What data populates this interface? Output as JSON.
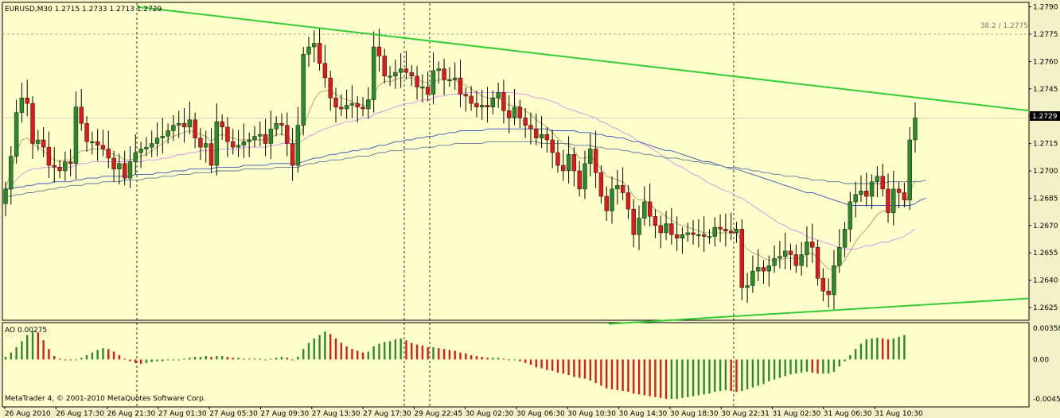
{
  "header": {
    "title": "EURUSD,M30  1.2715 1.2733 1.2713 1.2729",
    "fib_label": "38.2 / 1.2775",
    "indicator_label": "AO 0.00275",
    "copyright": "MetaTrader 4, © 2001-2010 MetaQuotes Software Corp."
  },
  "colors": {
    "background": "#FFFFCC",
    "bull": "#2A8A2A",
    "bear": "#DD1A1A",
    "trendline": "#33CC33",
    "grid": "#C0C0B0",
    "price_box": "#000000"
  },
  "chart_data": [
    {
      "type": "candlestick",
      "symbol": "EURUSD",
      "timeframe": "M30",
      "ylim": [
        1.2618,
        1.2792
      ],
      "price_ticks": [
        "1.2790",
        "1.2775",
        "1.2760",
        "1.2745",
        "1.2730",
        "1.2715",
        "1.2700",
        "1.2685",
        "1.2670",
        "1.2655",
        "1.2640",
        "1.2625"
      ],
      "current_price": "1.2729",
      "fib_level": 1.2775,
      "x_labels": [
        "26 Aug 2010",
        "26 Aug 17:30",
        "26 Aug 21:30",
        "27 Aug 01:30",
        "27 Aug 05:30",
        "27 Aug 09:30",
        "27 Aug 13:30",
        "27 Aug 17:30",
        "29 Aug 22:45",
        "30 Aug 02:30",
        "30 Aug 06:30",
        "30 Aug 10:30",
        "30 Aug 14:30",
        "30 Aug 18:30",
        "30 Aug 22:31",
        "31 Aug 02:30",
        "31 Aug 06:30",
        "31 Aug 10:30"
      ],
      "candles_close": [
        1.269,
        1.2708,
        1.2732,
        1.274,
        1.2737,
        1.2715,
        1.2717,
        1.2713,
        1.2703,
        1.2702,
        1.27,
        1.2705,
        1.2704,
        1.2735,
        1.2726,
        1.2716,
        1.2716,
        1.2714,
        1.2712,
        1.2707,
        1.2701,
        1.2704,
        1.2696,
        1.2705,
        1.271,
        1.2712,
        1.2713,
        1.2715,
        1.2718,
        1.2719,
        1.2722,
        1.2725,
        1.2726,
        1.2724,
        1.2728,
        1.2718,
        1.2713,
        1.2715,
        1.2703,
        1.2727,
        1.2724,
        1.2716,
        1.2713,
        1.2714,
        1.2716,
        1.2717,
        1.2719,
        1.272,
        1.2715,
        1.2723,
        1.2726,
        1.2725,
        1.2715,
        1.2703,
        1.2725,
        1.2764,
        1.2768,
        1.277,
        1.2759,
        1.2751,
        1.274,
        1.2735,
        1.2734,
        1.2736,
        1.2737,
        1.2735,
        1.2734,
        1.2739,
        1.2768,
        1.2763,
        1.2752,
        1.2752,
        1.2754,
        1.2756,
        1.2754,
        1.2752,
        1.2746,
        1.2746,
        1.2742,
        1.2755,
        1.2756,
        1.275,
        1.275,
        1.2751,
        1.2742,
        1.2741,
        1.2737,
        1.2735,
        1.2736,
        1.2735,
        1.274,
        1.2743,
        1.2733,
        1.2729,
        1.2735,
        1.2729,
        1.2725,
        1.2723,
        1.2718,
        1.272,
        1.2717,
        1.271,
        1.2703,
        1.27,
        1.2709,
        1.27,
        1.269,
        1.2704,
        1.2712,
        1.2699,
        1.2686,
        1.2678,
        1.269,
        1.2692,
        1.2688,
        1.2679,
        1.2665,
        1.2674,
        1.2683,
        1.2675,
        1.267,
        1.2666,
        1.2671,
        1.2665,
        1.2663,
        1.2665,
        1.2666,
        1.2665,
        1.2665,
        1.2664,
        1.2664,
        1.2669,
        1.2668,
        1.2667,
        1.2666,
        1.2668,
        1.2636,
        1.2637,
        1.2645,
        1.2647,
        1.2645,
        1.2648,
        1.2652,
        1.2653,
        1.2656,
        1.2654,
        1.2648,
        1.2654,
        1.2661,
        1.2658,
        1.2641,
        1.2634,
        1.2632,
        1.2648,
        1.2658,
        1.2668,
        1.2683,
        1.2687,
        1.2689,
        1.2686,
        1.2694,
        1.2697,
        1.269,
        1.2677,
        1.269,
        1.2688,
        1.2684,
        1.2717,
        1.2729
      ],
      "sma_fast": [
        1.269,
        1.27,
        1.271,
        1.2717,
        1.2718,
        1.2715,
        1.2713,
        1.2711,
        1.2708,
        1.2706,
        1.2705,
        1.2706,
        1.2706,
        1.2709,
        1.2711,
        1.2711,
        1.2712,
        1.2712,
        1.2712,
        1.271,
        1.2709,
        1.2708,
        1.2706,
        1.2706,
        1.2707,
        1.2708,
        1.2709,
        1.2711,
        1.2713,
        1.2715,
        1.2717,
        1.2719,
        1.272,
        1.2721,
        1.2722,
        1.2721,
        1.272,
        1.2719,
        1.2716,
        1.2719,
        1.272,
        1.2719,
        1.2718,
        1.2717,
        1.2717,
        1.2717,
        1.2717,
        1.2717,
        1.2717,
        1.2718,
        1.272,
        1.272,
        1.2719,
        1.2716,
        1.2717,
        1.2724,
        1.2732,
        1.2739,
        1.2743,
        1.2744,
        1.2744,
        1.2742,
        1.274,
        1.2739,
        1.2738,
        1.2737,
        1.2736,
        1.2736,
        1.2742,
        1.2747,
        1.2749,
        1.2749,
        1.275,
        1.2751,
        1.2751,
        1.2751,
        1.275,
        1.2749,
        1.2748,
        1.2749,
        1.275,
        1.275,
        1.275,
        1.275,
        1.2748,
        1.2747,
        1.2745,
        1.2743,
        1.2741,
        1.274,
        1.274,
        1.274,
        1.2738,
        1.2736,
        1.2736,
        1.2735,
        1.2733,
        1.2731,
        1.2728,
        1.2726,
        1.2724,
        1.2721,
        1.2718,
        1.2715,
        1.2714,
        1.2711,
        1.2707,
        1.2707,
        1.2708,
        1.2705,
        1.2701,
        1.2697,
        1.2696,
        1.2695,
        1.2694,
        1.2691,
        1.2686,
        1.2684,
        1.2684,
        1.2682,
        1.2679,
        1.2677,
        1.2675,
        1.2673,
        1.2671,
        1.267,
        1.2669,
        1.2668,
        1.2667,
        1.2666,
        1.2666,
        1.2666,
        1.2666,
        1.2666,
        1.2666,
        1.2666,
        1.2661,
        1.2657,
        1.2655,
        1.2654,
        1.2652,
        1.2651,
        1.2651,
        1.2651,
        1.2652,
        1.2652,
        1.2652,
        1.2652,
        1.2654,
        1.2655,
        1.2652,
        1.2649,
        1.2646,
        1.2646,
        1.2648,
        1.2651,
        1.2656,
        1.2661,
        1.2665,
        1.2668,
        1.2672,
        1.2676,
        1.2678,
        1.2678,
        1.268,
        1.2681,
        1.2681,
        1.2688,
        1.2695
      ],
      "sma_medium": [
        1.269,
        1.2692,
        1.2695,
        1.2698,
        1.27,
        1.2701,
        1.2701,
        1.2702,
        1.2702,
        1.2702,
        1.2702,
        1.2702,
        1.2702,
        1.2703,
        1.2704,
        1.2704,
        1.2705,
        1.2705,
        1.2705,
        1.2705,
        1.2705,
        1.2705,
        1.2705,
        1.2705,
        1.2705,
        1.2705,
        1.2706,
        1.2706,
        1.2706,
        1.2707,
        1.2707,
        1.2708,
        1.2709,
        1.2709,
        1.271,
        1.271,
        1.2711,
        1.2711,
        1.2711,
        1.2711,
        1.2712,
        1.2712,
        1.2712,
        1.2712,
        1.2713,
        1.2713,
        1.2713,
        1.2713,
        1.2713,
        1.2714,
        1.2714,
        1.2715,
        1.2715,
        1.2715,
        1.2715,
        1.2717,
        1.2719,
        1.272,
        1.2722,
        1.2723,
        1.2724,
        1.2725,
        1.2726,
        1.2727,
        1.2727,
        1.2728,
        1.2729,
        1.2729,
        1.2731,
        1.2732,
        1.2733,
        1.2734,
        1.2735,
        1.2736,
        1.2737,
        1.2737,
        1.2738,
        1.2739,
        1.2739,
        1.274,
        1.2741,
        1.2741,
        1.2742,
        1.2742,
        1.2742,
        1.2743,
        1.2743,
        1.2743,
        1.2743,
        1.2743,
        1.2743,
        1.2743,
        1.2743,
        1.2743,
        1.2743,
        1.2742,
        1.2742,
        1.2741,
        1.274,
        1.274,
        1.2739,
        1.2738,
        1.2737,
        1.2735,
        1.2734,
        1.2733,
        1.2732,
        1.2731,
        1.273,
        1.2729,
        1.2727,
        1.2726,
        1.2724,
        1.2723,
        1.2721,
        1.272,
        1.2718,
        1.2716,
        1.2714,
        1.2713,
        1.2711,
        1.2709,
        1.2707,
        1.2705,
        1.2703,
        1.2702,
        1.27,
        1.2698,
        1.2697,
        1.2695,
        1.2693,
        1.2692,
        1.269,
        1.2689,
        1.2688,
        1.2686,
        1.2685,
        1.2683,
        1.2681,
        1.2679,
        1.2677,
        1.2675,
        1.2673,
        1.2671,
        1.267,
        1.2668,
        1.2667,
        1.2666,
        1.2664,
        1.2663,
        1.2662,
        1.2661,
        1.266,
        1.2659,
        1.2658,
        1.2657,
        1.2657,
        1.2657,
        1.2658,
        1.2659,
        1.2659,
        1.266,
        1.2661,
        1.2661,
        1.2662,
        1.2663,
        1.2664,
        1.2666,
        1.2668
      ],
      "sma_slow_a": [
        1.269,
        1.269,
        1.2691,
        1.2691,
        1.2692,
        1.2692,
        1.2693,
        1.2693,
        1.2693,
        1.2694,
        1.2694,
        1.2694,
        1.2694,
        1.2695,
        1.2695,
        1.2696,
        1.2696,
        1.2696,
        1.2697,
        1.2697,
        1.2697,
        1.2697,
        1.2697,
        1.2697,
        1.2698,
        1.2698,
        1.2698,
        1.2698,
        1.2699,
        1.2699,
        1.2699,
        1.27,
        1.27,
        1.27,
        1.2701,
        1.2701,
        1.2701,
        1.2701,
        1.2701,
        1.2702,
        1.2702,
        1.2702,
        1.2702,
        1.2702,
        1.2703,
        1.2703,
        1.2703,
        1.2703,
        1.2703,
        1.2704,
        1.2704,
        1.2704,
        1.2704,
        1.2704,
        1.2704,
        1.2705,
        1.2706,
        1.2707,
        1.2707,
        1.2708,
        1.2709,
        1.2709,
        1.271,
        1.271,
        1.2711,
        1.2711,
        1.2712,
        1.2712,
        1.2713,
        1.2714,
        1.2714,
        1.2715,
        1.2716,
        1.2716,
        1.2717,
        1.2717,
        1.2718,
        1.2718,
        1.2719,
        1.2719,
        1.272,
        1.272,
        1.2721,
        1.2721,
        1.2722,
        1.2722,
        1.2722,
        1.2722,
        1.2722,
        1.2723,
        1.2723,
        1.2723,
        1.2723,
        1.2723,
        1.2723,
        1.2723,
        1.2723,
        1.2723,
        1.2723,
        1.2723,
        1.2723,
        1.2722,
        1.2722,
        1.2722,
        1.2722,
        1.2722,
        1.2721,
        1.2721,
        1.2721,
        1.272,
        1.272,
        1.2719,
        1.2719,
        1.2718,
        1.2718,
        1.2717,
        1.2716,
        1.2716,
        1.2715,
        1.2714,
        1.2713,
        1.2712,
        1.2711,
        1.2711,
        1.271,
        1.2709,
        1.2708,
        1.2707,
        1.2706,
        1.2705,
        1.2705,
        1.2704,
        1.2703,
        1.2702,
        1.2701,
        1.2701,
        1.27,
        1.2699,
        1.2698,
        1.2697,
        1.2696,
        1.2695,
        1.2694,
        1.2693,
        1.2692,
        1.2691,
        1.269,
        1.2689,
        1.2688,
        1.2688,
        1.2687,
        1.2686,
        1.2685,
        1.2684,
        1.2683,
        1.2682,
        1.2681,
        1.2681,
        1.2681,
        1.2681,
        1.2681,
        1.2681,
        1.2681,
        1.2681,
        1.2681,
        1.2681,
        1.2681,
        1.2681,
        1.2682,
        1.2684,
        1.2685
      ],
      "sma_slow_b": [
        1.2686,
        1.2686,
        1.2687,
        1.2687,
        1.2688,
        1.2688,
        1.2689,
        1.2689,
        1.269,
        1.269,
        1.2691,
        1.2691,
        1.2692,
        1.2692,
        1.2692,
        1.2693,
        1.2693,
        1.2693,
        1.2694,
        1.2694,
        1.2694,
        1.2694,
        1.2695,
        1.2695,
        1.2695,
        1.2695,
        1.2696,
        1.2696,
        1.2696,
        1.2697,
        1.2697,
        1.2697,
        1.2698,
        1.2698,
        1.2698,
        1.2699,
        1.2699,
        1.2699,
        1.2699,
        1.27,
        1.27,
        1.27,
        1.27,
        1.27,
        1.2701,
        1.2701,
        1.2701,
        1.2701,
        1.2701,
        1.2701,
        1.2702,
        1.2702,
        1.2702,
        1.2702,
        1.2702,
        1.2703,
        1.2704,
        1.2704,
        1.2705,
        1.2705,
        1.2706,
        1.2706,
        1.2706,
        1.2707,
        1.2707,
        1.2708,
        1.2708,
        1.2708,
        1.2709,
        1.271,
        1.271,
        1.2711,
        1.2711,
        1.2711,
        1.2712,
        1.2712,
        1.2712,
        1.2713,
        1.2713,
        1.2713,
        1.2714,
        1.2714,
        1.2714,
        1.2715,
        1.2715,
        1.2715,
        1.2715,
        1.2715,
        1.2715,
        1.2716,
        1.2716,
        1.2716,
        1.2716,
        1.2716,
        1.2716,
        1.2716,
        1.2716,
        1.2716,
        1.2716,
        1.2715,
        1.2715,
        1.2715,
        1.2715,
        1.2715,
        1.2715,
        1.2714,
        1.2714,
        1.2714,
        1.2714,
        1.2713,
        1.2713,
        1.2712,
        1.2712,
        1.2712,
        1.2711,
        1.2711,
        1.271,
        1.271,
        1.2709,
        1.2709,
        1.2708,
        1.2708,
        1.2707,
        1.2707,
        1.2707,
        1.2706,
        1.2706,
        1.2705,
        1.2705,
        1.2704,
        1.2704,
        1.2703,
        1.2703,
        1.2702,
        1.2702,
        1.2702,
        1.2701,
        1.2701,
        1.27,
        1.27,
        1.2699,
        1.2699,
        1.2698,
        1.2698,
        1.2697,
        1.2697,
        1.2697,
        1.2696,
        1.2696,
        1.2695,
        1.2695,
        1.2695,
        1.2694,
        1.2694,
        1.2694,
        1.2693,
        1.2693,
        1.2693,
        1.2693,
        1.2693,
        1.2693,
        1.2693,
        1.2693,
        1.2694,
        1.2694,
        1.2694,
        1.2694,
        1.2694,
        1.2694,
        1.2694,
        1.2695
      ],
      "trendline_upper": [
        1.279,
        1.2733
      ],
      "trendline_lower": [
        1.2616,
        1.263
      ]
    },
    {
      "type": "bar",
      "name": "AO 0.00275",
      "ylim": [
        -0.00451,
        0.00358
      ],
      "y_ticks": [
        "0.00358",
        "0.00",
        "-0.00451"
      ],
      "values": [
        0.0003,
        0.0008,
        0.0014,
        0.0021,
        0.0028,
        0.0032,
        0.0031,
        0.0022,
        0.0012,
        0.0004,
        0.0001,
        0.0,
        -0.0001,
        0.0,
        0.0002,
        0.0005,
        0.0008,
        0.0011,
        0.0013,
        0.0012,
        0.0009,
        0.0005,
        0.0001,
        -0.0002,
        -0.0004,
        -0.0005,
        -0.0004,
        -0.0003,
        -0.0002,
        -0.0002,
        -0.0001,
        -0.0001,
        0.0,
        0.0001,
        0.0002,
        0.0003,
        0.0003,
        0.0004,
        0.0003,
        0.0004,
        0.0004,
        0.0003,
        0.0002,
        0.0002,
        0.0001,
        0.0001,
        0.0001,
        0.0001,
        0.0,
        0.0001,
        0.0002,
        0.0003,
        0.0002,
        0.0,
        0.0003,
        0.0012,
        0.0019,
        0.0024,
        0.0028,
        0.0032,
        0.0029,
        0.0024,
        0.0019,
        0.0015,
        0.0012,
        0.001,
        0.0008,
        0.0009,
        0.0015,
        0.0018,
        0.002,
        0.0021,
        0.0023,
        0.0024,
        0.0022,
        0.0019,
        0.0017,
        0.0016,
        0.0014,
        0.0014,
        0.0013,
        0.0012,
        0.0011,
        0.001,
        0.0008,
        0.0007,
        0.0005,
        0.0004,
        0.0003,
        0.0002,
        0.0002,
        0.0002,
        0.0001,
        0.0,
        0.0,
        -0.0002,
        -0.0004,
        -0.0006,
        -0.0009,
        -0.001,
        -0.0012,
        -0.0013,
        -0.0015,
        -0.0016,
        -0.0018,
        -0.002,
        -0.0021,
        -0.0022,
        -0.0024,
        -0.0027,
        -0.003,
        -0.0033,
        -0.0034,
        -0.0035,
        -0.0036,
        -0.0037,
        -0.0039,
        -0.004,
        -0.0041,
        -0.0042,
        -0.0043,
        -0.0044,
        -0.0045,
        -0.0045,
        -0.0045,
        -0.0044,
        -0.0043,
        -0.0042,
        -0.0041,
        -0.004,
        -0.0039,
        -0.0037,
        -0.0036,
        -0.0035,
        -0.0036,
        -0.0037,
        -0.0036,
        -0.0034,
        -0.0032,
        -0.003,
        -0.0028,
        -0.0025,
        -0.0023,
        -0.0021,
        -0.0019,
        -0.0017,
        -0.0016,
        -0.0015,
        -0.0014,
        -0.0015,
        -0.0016,
        -0.0016,
        -0.0016,
        -0.0014,
        -0.0008,
        -0.0002,
        0.0005,
        0.0012,
        0.0018,
        0.0023,
        0.0024,
        0.0025,
        0.0024,
        0.0023,
        0.0024,
        0.0026,
        0.0028
      ]
    }
  ]
}
